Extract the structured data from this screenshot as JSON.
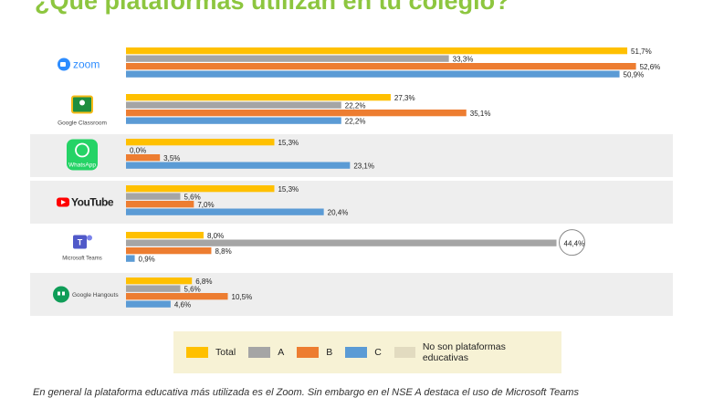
{
  "title": "¿Qué plataformas utilizan en tu colegio?",
  "caption": "En general la plataforma educativa más utilizada es el Zoom. Sin embargo en el NSE A destaca el uso de Microsoft Teams",
  "colors": {
    "Total": "#ffc000",
    "A": "#a5a5a5",
    "B": "#ed7d31",
    "C": "#5b9bd5",
    "No son plataformas educativas": "#e2dbc0",
    "row_shade": "#eeeeee"
  },
  "chart_data": {
    "type": "bar",
    "orientation": "horizontal",
    "categories": [
      "Zoom",
      "Google Classroom",
      "WhatsApp",
      "YouTube",
      "Microsoft Teams",
      "Google Hangouts"
    ],
    "category_labels": {
      "Zoom": "zoom",
      "Google Classroom": "Google Classroom",
      "WhatsApp": "WhatsApp",
      "YouTube": "YouTube",
      "Microsoft Teams": "Microsoft Teams",
      "Google Hangouts": "Google Hangouts"
    },
    "shaded_rows": [
      "WhatsApp",
      "YouTube",
      "Google Hangouts"
    ],
    "series": [
      {
        "name": "Total",
        "values": [
          51.7,
          27.3,
          15.3,
          15.3,
          8.0,
          6.8
        ],
        "labels": [
          "51,7%",
          "27,3%",
          "15,3%",
          "15,3%",
          "8,0%",
          "6,8%"
        ]
      },
      {
        "name": "A",
        "values": [
          33.3,
          22.2,
          0.0,
          5.6,
          44.4,
          5.6
        ],
        "labels": [
          "33,3%",
          "22,2%",
          "0,0%",
          "5,6%",
          "44,4%",
          "5,6%"
        ]
      },
      {
        "name": "B",
        "values": [
          52.6,
          35.1,
          3.5,
          7.0,
          8.8,
          10.5
        ],
        "labels": [
          "52,6%",
          "35,1%",
          "3,5%",
          "7,0%",
          "8,8%",
          "10,5%"
        ]
      },
      {
        "name": "C",
        "values": [
          50.9,
          22.2,
          23.1,
          20.4,
          0.9,
          4.6
        ],
        "labels": [
          "50,9%",
          "22,2%",
          "23,1%",
          "20,4%",
          "0,9%",
          "4,6%"
        ]
      }
    ],
    "highlighted": {
      "category": "Microsoft Teams",
      "series": "A"
    },
    "xlim": [
      0,
      60
    ],
    "grid": false,
    "legend_position": "bottom"
  },
  "legend": [
    {
      "label": "Total",
      "color": "#ffc000"
    },
    {
      "label": "A",
      "color": "#a5a5a5"
    },
    {
      "label": "B",
      "color": "#ed7d31"
    },
    {
      "label": "C",
      "color": "#5b9bd5"
    },
    {
      "label": "No son plataformas educativas",
      "color": "#e2dbc0"
    }
  ]
}
